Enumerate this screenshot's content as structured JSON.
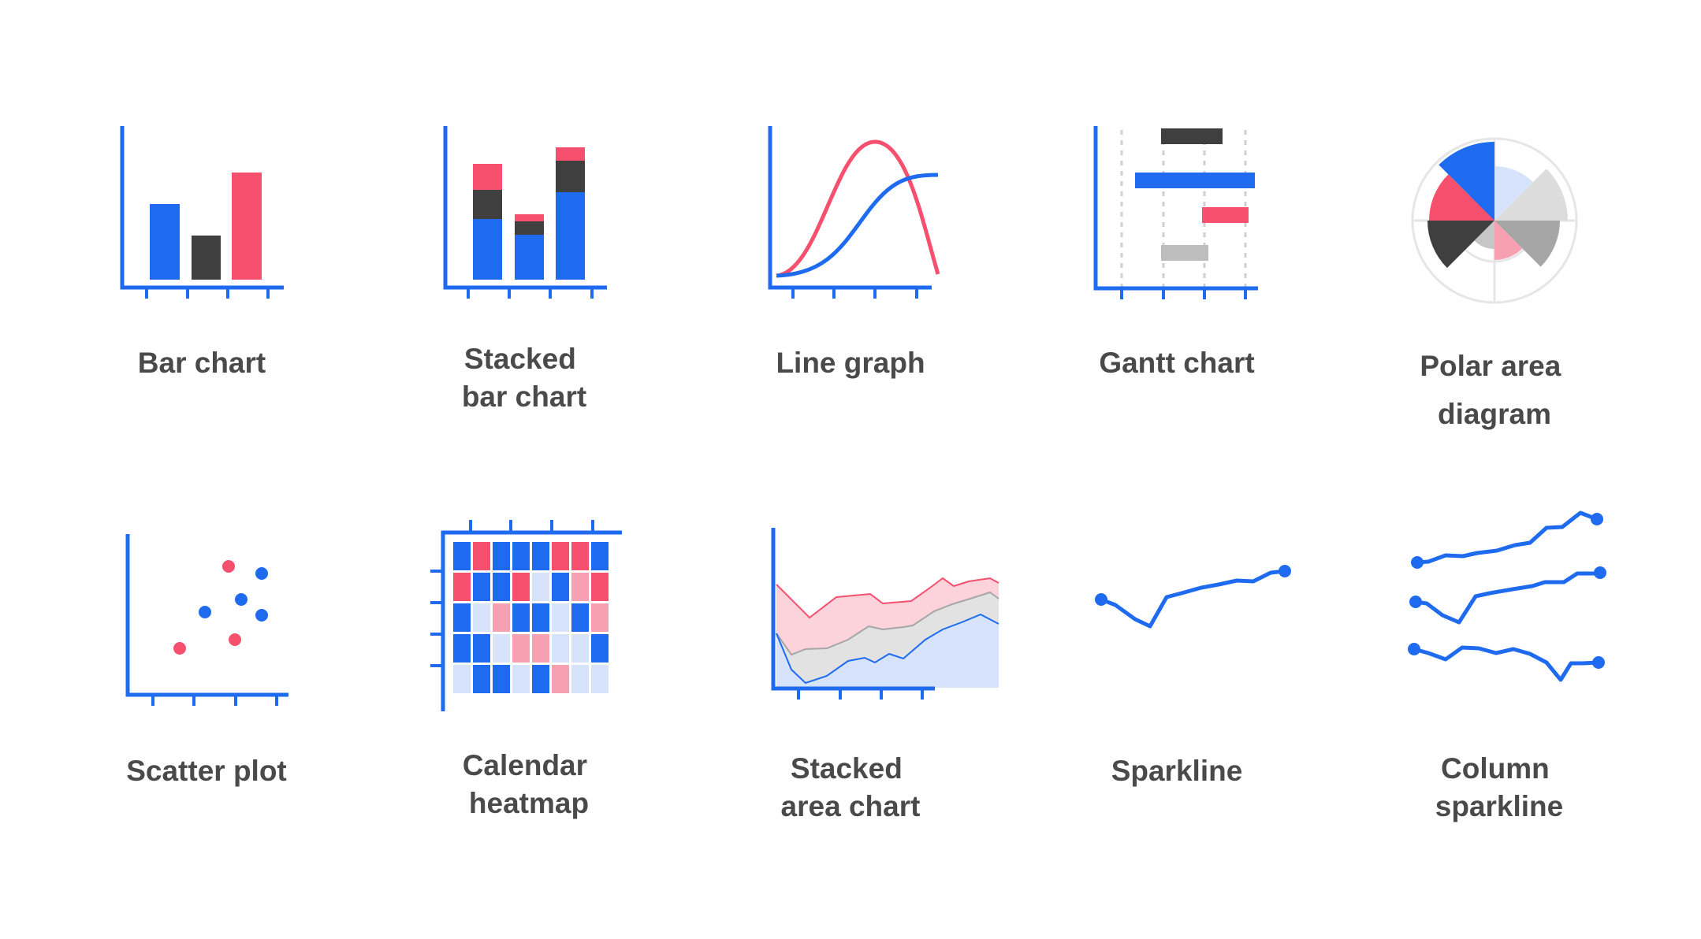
{
  "colors": {
    "blue": "#1f6bf0",
    "pink": "#f7506f",
    "dark": "#3f3f3f",
    "light_blue": "#d6e3fb",
    "light_pink": "#f6a0b1",
    "gray": "#bdbdbd",
    "light_gray": "#dcdcdc",
    "text": "#4a4a4a"
  },
  "tiles": [
    {
      "id": "bar-chart",
      "icon": "bar-chart-icon",
      "lines": [
        "Bar chart"
      ]
    },
    {
      "id": "stacked-bar-chart",
      "icon": "stacked-bar-chart-icon",
      "lines": [
        "Stacked",
        "bar chart"
      ]
    },
    {
      "id": "line-graph",
      "icon": "line-graph-icon",
      "lines": [
        "Line graph"
      ]
    },
    {
      "id": "gantt-chart",
      "icon": "gantt-chart-icon",
      "lines": [
        "Gantt chart"
      ]
    },
    {
      "id": "polar-area-diagram",
      "icon": "polar-area-diagram-icon",
      "lines": [
        "Polar area",
        "diagram"
      ]
    },
    {
      "id": "scatter-plot",
      "icon": "scatter-plot-icon",
      "lines": [
        "Scatter plot"
      ]
    },
    {
      "id": "calendar-heatmap",
      "icon": "calendar-heatmap-icon",
      "lines": [
        "Calendar",
        "heatmap"
      ]
    },
    {
      "id": "stacked-area-chart",
      "icon": "stacked-area-chart-icon",
      "lines": [
        "Stacked",
        "area chart"
      ]
    },
    {
      "id": "sparkline",
      "icon": "sparkline-icon",
      "lines": [
        "Sparkline"
      ]
    },
    {
      "id": "column-sparkline",
      "icon": "column-sparkline-icon",
      "lines": [
        "Column",
        "sparkline"
      ]
    }
  ]
}
